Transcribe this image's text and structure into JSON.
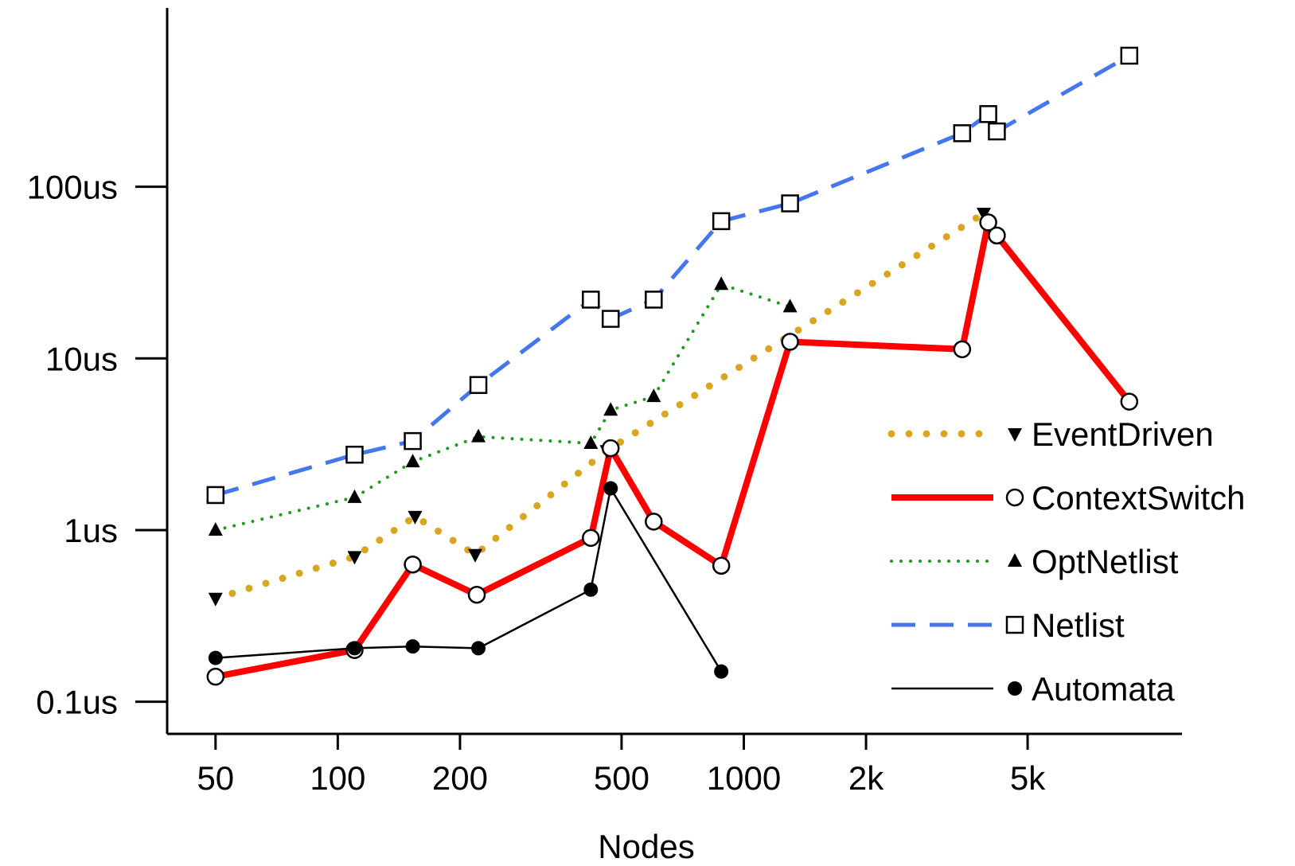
{
  "chart_data": {
    "type": "line",
    "x_scale": "log",
    "y_scale": "log",
    "xlabel": "Nodes",
    "ylabel": "",
    "title": "",
    "x_ticks": [
      {
        "value": 50,
        "label": "50"
      },
      {
        "value": 100,
        "label": "100"
      },
      {
        "value": 200,
        "label": "200"
      },
      {
        "value": 500,
        "label": "500"
      },
      {
        "value": 1000,
        "label": "1000"
      },
      {
        "value": 2000,
        "label": "2k"
      },
      {
        "value": 5000,
        "label": "5k"
      }
    ],
    "y_ticks": [
      {
        "value": 0.1,
        "label": "0.1us"
      },
      {
        "value": 1,
        "label": "1us"
      },
      {
        "value": 10,
        "label": "10us"
      },
      {
        "value": 100,
        "label": "100us"
      }
    ],
    "xlim": [
      38,
      12000
    ],
    "ylim": [
      0.065,
      1100
    ],
    "grid": false,
    "legend_position": "right",
    "series": [
      {
        "name": "EventDriven",
        "color": "#DAA520",
        "line": "dotted",
        "marker": "triangle-down",
        "points": [
          [
            50,
            0.4
          ],
          [
            110,
            0.7
          ],
          [
            155,
            1.2
          ],
          [
            218,
            0.72
          ],
          [
            460,
            2.9
          ],
          [
            3900,
            70
          ]
        ]
      },
      {
        "name": "ContextSwitch",
        "color": "#FF0000",
        "line": "solid-thick",
        "marker": "circle-open",
        "points": [
          [
            50,
            0.14
          ],
          [
            110,
            0.2
          ],
          [
            153,
            0.63
          ],
          [
            220,
            0.42
          ],
          [
            420,
            0.9
          ],
          [
            470,
            3.0
          ],
          [
            600,
            1.12
          ],
          [
            880,
            0.62
          ],
          [
            1300,
            12.5
          ],
          [
            3450,
            11.3
          ],
          [
            4000,
            62
          ],
          [
            4200,
            52
          ],
          [
            8900,
            5.6
          ]
        ]
      },
      {
        "name": "OptNetlist",
        "color": "#1A9C1A",
        "line": "dotted",
        "marker": "triangle-up",
        "points": [
          [
            50,
            1.0
          ],
          [
            110,
            1.55
          ],
          [
            153,
            2.5
          ],
          [
            222,
            3.5
          ],
          [
            420,
            3.2
          ],
          [
            470,
            5.0
          ],
          [
            600,
            6.0
          ],
          [
            880,
            27
          ],
          [
            1300,
            20
          ]
        ]
      },
      {
        "name": "Netlist",
        "color": "#4477EE",
        "line": "dashed",
        "marker": "square-open",
        "points": [
          [
            50,
            1.6
          ],
          [
            110,
            2.75
          ],
          [
            153,
            3.3
          ],
          [
            222,
            7.0
          ],
          [
            420,
            22
          ],
          [
            470,
            17
          ],
          [
            600,
            22
          ],
          [
            880,
            63
          ],
          [
            1300,
            80
          ],
          [
            3450,
            205
          ],
          [
            4000,
            265
          ],
          [
            4200,
            210
          ],
          [
            8900,
            580
          ]
        ]
      },
      {
        "name": "Automata",
        "color": "#000000",
        "line": "thin",
        "marker": "circle-filled",
        "points": [
          [
            50,
            0.18
          ],
          [
            110,
            0.205
          ],
          [
            153,
            0.21
          ],
          [
            222,
            0.205
          ],
          [
            420,
            0.45
          ],
          [
            470,
            1.75
          ],
          [
            880,
            0.15
          ]
        ]
      }
    ]
  }
}
